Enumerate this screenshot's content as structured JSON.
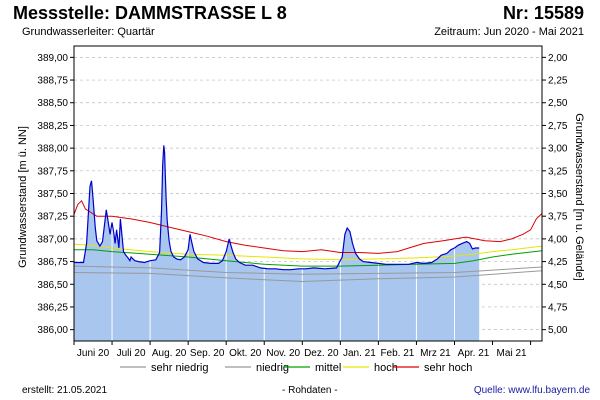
{
  "header": {
    "title": "Messstelle: DAMMSTRASSE L 8",
    "nr": "Nr: 15589",
    "aquifer": "Grundwasserleiter: Quartär",
    "period": "Zeitraum: Jun 2020 - Mai 2021"
  },
  "footer": {
    "created": "erstellt:  21.05.2021",
    "raw": "- Rohdaten -",
    "source": "Quelle:  www.lfu.bayern.de"
  },
  "colors": {
    "fill": "#a8c6ee",
    "level_line": "#0000cc",
    "sehr_niedrig": "#999999",
    "niedrig": "#999999",
    "mittel": "#00a000",
    "hoch": "#e6e600",
    "sehr_hoch": "#e00000",
    "grid": "#bbbbbb",
    "bar_grid": "#ffffff"
  },
  "chart_data": {
    "type": "area",
    "title": "Messstelle: DAMMSTRASSE L 8",
    "ylabel": "Grundwasserstand [m ü. NN]",
    "y2label": "Grundwasserstand [m u. Gelände]",
    "ylim": [
      385.875,
      389.125
    ],
    "y2lim": [
      5.125,
      1.875
    ],
    "xlim": [
      0,
      12.3
    ],
    "y_ticks": [
      "386,00",
      "386,25",
      "386,50",
      "386,75",
      "387,00",
      "387,25",
      "387,50",
      "387,75",
      "388,00",
      "388,25",
      "388,50",
      "388,75",
      "389,00"
    ],
    "y_tick_values": [
      386.0,
      386.25,
      386.5,
      386.75,
      387.0,
      387.25,
      387.5,
      387.75,
      388.0,
      388.25,
      388.5,
      388.75,
      389.0
    ],
    "y2_ticks": [
      "5,00",
      "4,75",
      "4,50",
      "4,25",
      "4,00",
      "3,75",
      "3,50",
      "3,25",
      "3,00",
      "2,75",
      "2,50",
      "2,25",
      "2,00"
    ],
    "x_ticks": [
      "Juni 20",
      "Juli 20",
      "Aug. 20",
      "Sep. 20",
      "Okt. 20",
      "Nov. 20",
      "Dez. 20",
      "Jan. 21",
      "Feb. 21",
      "Mrz 21",
      "Apr. 21",
      "Mai 21"
    ],
    "legend": [
      "sehr niedrig",
      "niedrig",
      "mittel",
      "hoch",
      "sehr hoch"
    ],
    "series": [
      {
        "name": "Grundwasserstand",
        "x": [
          0,
          0.25,
          0.33,
          0.42,
          0.46,
          0.5,
          0.56,
          0.6,
          0.68,
          0.75,
          0.85,
          0.95,
          1.0,
          1.05,
          1.08,
          1.12,
          1.18,
          1.22,
          1.3,
          1.36,
          1.42,
          1.47,
          1.5,
          1.55,
          1.6,
          1.7,
          1.85,
          2.0,
          2.15,
          2.25,
          2.3,
          2.33,
          2.36,
          2.38,
          2.4,
          2.42,
          2.45,
          2.5,
          2.55,
          2.62,
          2.7,
          2.8,
          2.9,
          3.0,
          3.05,
          3.1,
          3.15,
          3.25,
          3.4,
          3.6,
          3.8,
          3.9,
          4.0,
          4.08,
          4.13,
          4.18,
          4.25,
          4.35,
          4.5,
          4.7,
          4.9,
          5.1,
          5.3,
          5.5,
          5.7,
          5.9,
          6.1,
          6.3,
          6.6,
          6.9,
          7.05,
          7.12,
          7.18,
          7.25,
          7.32,
          7.4,
          7.5,
          7.6,
          7.8,
          8.0,
          8.2,
          8.4,
          8.6,
          8.8,
          9.0,
          9.2,
          9.4,
          9.55,
          9.65,
          9.8,
          9.9,
          10.0,
          10.1,
          10.2,
          10.32,
          10.4,
          10.47,
          10.55,
          10.65
        ],
        "values": [
          386.74,
          386.74,
          386.95,
          387.58,
          387.64,
          387.45,
          387.12,
          386.98,
          386.92,
          386.97,
          387.32,
          387.05,
          387.18,
          387.05,
          386.95,
          387.1,
          386.9,
          387.22,
          386.86,
          386.82,
          386.79,
          386.76,
          386.8,
          386.78,
          386.76,
          386.75,
          386.74,
          386.76,
          386.77,
          386.85,
          387.3,
          387.82,
          388.03,
          387.95,
          387.7,
          387.45,
          387.2,
          386.98,
          386.86,
          386.8,
          386.78,
          386.77,
          386.8,
          386.88,
          387.05,
          386.95,
          386.86,
          386.78,
          386.74,
          386.73,
          386.73,
          386.76,
          386.86,
          387.0,
          386.92,
          386.85,
          386.78,
          386.74,
          386.71,
          386.71,
          386.68,
          386.67,
          386.67,
          386.66,
          386.66,
          386.67,
          386.67,
          386.68,
          386.67,
          386.68,
          386.8,
          387.05,
          387.12,
          387.08,
          386.95,
          386.84,
          386.78,
          386.75,
          386.74,
          386.73,
          386.72,
          386.72,
          386.72,
          386.72,
          386.74,
          386.73,
          386.74,
          386.78,
          386.82,
          386.84,
          386.88,
          386.9,
          386.93,
          386.95,
          386.97,
          386.95,
          386.89,
          386.9,
          386.9
        ]
      },
      {
        "name": "sehr niedrig",
        "x": [
          0,
          2,
          4,
          6,
          8,
          10,
          12.3
        ],
        "values": [
          386.63,
          386.62,
          386.57,
          386.53,
          386.56,
          386.58,
          386.65
        ]
      },
      {
        "name": "niedrig",
        "x": [
          0,
          2,
          4,
          6,
          8,
          10,
          12.3
        ],
        "values": [
          386.7,
          386.68,
          386.63,
          386.61,
          386.62,
          386.63,
          386.69
        ]
      },
      {
        "name": "mittel",
        "x": [
          0,
          0.5,
          1,
          2,
          3,
          4,
          5,
          6,
          7,
          8,
          9,
          10,
          10.5,
          11,
          11.5,
          12.3
        ],
        "values": [
          386.88,
          386.88,
          386.86,
          386.83,
          386.8,
          386.76,
          386.72,
          386.7,
          386.7,
          386.71,
          386.72,
          386.73,
          386.76,
          386.8,
          386.83,
          386.87
        ]
      },
      {
        "name": "hoch",
        "x": [
          0,
          0.5,
          1,
          2,
          3,
          4,
          5,
          6,
          7,
          8,
          9,
          10,
          10.5,
          11,
          11.5,
          12.3
        ],
        "values": [
          386.94,
          386.93,
          386.9,
          386.86,
          386.83,
          386.82,
          386.8,
          386.78,
          386.77,
          386.78,
          386.79,
          386.81,
          386.83,
          386.86,
          386.88,
          386.92
        ]
      },
      {
        "name": "sehr hoch",
        "x": [
          0,
          0.1,
          0.2,
          0.3,
          0.6,
          1.0,
          1.5,
          2.0,
          2.5,
          3.0,
          3.5,
          4.0,
          4.5,
          5.0,
          5.5,
          6.0,
          6.5,
          7.0,
          7.5,
          8.0,
          8.5,
          8.8,
          9.2,
          9.7,
          10.3,
          10.8,
          11.2,
          11.5,
          11.8,
          12.0,
          12.15,
          12.3
        ],
        "values": [
          387.27,
          387.38,
          387.42,
          387.33,
          387.25,
          387.25,
          387.22,
          387.18,
          387.13,
          387.08,
          387.03,
          386.97,
          386.93,
          386.9,
          386.87,
          386.86,
          386.88,
          386.85,
          386.85,
          386.84,
          386.86,
          386.9,
          386.95,
          386.98,
          387.02,
          386.98,
          386.97,
          387.0,
          387.05,
          387.1,
          387.22,
          387.28
        ]
      }
    ]
  }
}
